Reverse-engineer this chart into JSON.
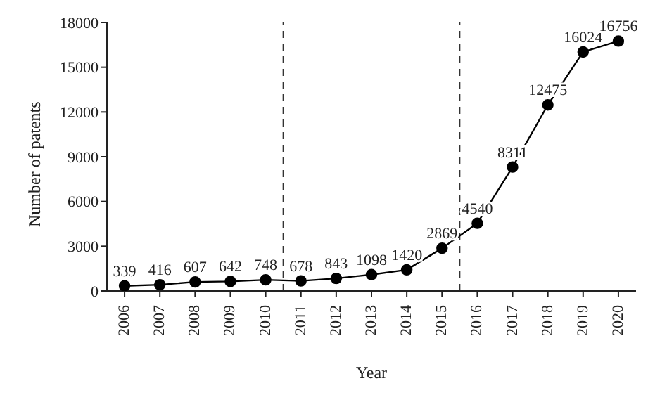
{
  "chart_data": {
    "type": "line",
    "xlabel": "Year",
    "ylabel": "Number of patents",
    "x": [
      2006,
      2007,
      2008,
      2009,
      2010,
      2011,
      2012,
      2013,
      2014,
      2015,
      2016,
      2017,
      2018,
      2019,
      2020
    ],
    "series": [
      {
        "color": "#000000",
        "values": [
          339,
          416,
          607,
          642,
          748,
          678,
          843,
          1098,
          1420,
          2869,
          4540,
          8311,
          12475,
          16024,
          16756
        ]
      }
    ],
    "xlim": [
      2005.5,
      2020.5
    ],
    "xticks": [
      2006,
      2007,
      2008,
      2009,
      2010,
      2011,
      2012,
      2013,
      2014,
      2015,
      2016,
      2017,
      2018,
      2019,
      2020
    ],
    "ylim": [
      0,
      18000
    ],
    "yticks": [
      0,
      3000,
      6000,
      9000,
      12000,
      15000,
      18000
    ],
    "ref_lines": [
      {
        "axis": "x",
        "value": 2010.5,
        "line_style": "dashed",
        "color": "#333333"
      },
      {
        "axis": "x",
        "value": 2015.5,
        "line_style": "dashed",
        "color": "#333333"
      }
    ],
    "data_labels": true,
    "marker": "circle",
    "line_style": "solid",
    "grid": false,
    "legend": false
  }
}
